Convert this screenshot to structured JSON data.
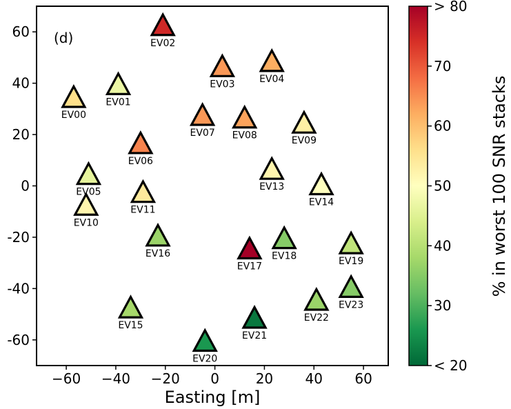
{
  "chart_data": {
    "type": "scatter",
    "panel_label": "(d)",
    "xlabel": "Easting [m]",
    "ylabel": "",
    "xlim": [
      -72,
      70
    ],
    "ylim": [
      -70,
      70
    ],
    "xticks": [
      -60,
      -40,
      -20,
      0,
      20,
      40,
      60
    ],
    "yticks": [
      -60,
      -40,
      -20,
      0,
      20,
      40,
      60
    ],
    "xtick_labels": [
      "−60",
      "−40",
      "−20",
      "0",
      "20",
      "40",
      "60"
    ],
    "ytick_labels": [
      "-60",
      "-40",
      "-20",
      "0",
      "20",
      "40",
      "60"
    ],
    "grid": false,
    "marker": "triangle",
    "colorbar": {
      "label": "% in worst 100 SNR stacks",
      "range": [
        20,
        80
      ],
      "cmap": "RdYlGn_r",
      "ticks": [
        20,
        30,
        40,
        50,
        60,
        70,
        80
      ],
      "tick_labels": [
        "< 20",
        "30",
        "40",
        "50",
        "60",
        "70",
        "> 80"
      ]
    },
    "points": [
      {
        "name": "EV00",
        "x": -57,
        "y": 34,
        "value": 56
      },
      {
        "name": "EV01",
        "x": -39,
        "y": 39,
        "value": 47
      },
      {
        "name": "EV02",
        "x": -21,
        "y": 62,
        "value": 75
      },
      {
        "name": "EV03",
        "x": 3,
        "y": 46,
        "value": 64
      },
      {
        "name": "EV04",
        "x": 23,
        "y": 48,
        "value": 62
      },
      {
        "name": "EV05",
        "x": -51,
        "y": 4,
        "value": 46
      },
      {
        "name": "EV06",
        "x": -30,
        "y": 16,
        "value": 66
      },
      {
        "name": "EV07",
        "x": -5,
        "y": 27,
        "value": 64
      },
      {
        "name": "EV08",
        "x": 12,
        "y": 26,
        "value": 63
      },
      {
        "name": "EV09",
        "x": 36,
        "y": 24,
        "value": 53
      },
      {
        "name": "EV10",
        "x": -52,
        "y": -8,
        "value": 52
      },
      {
        "name": "EV11",
        "x": -29,
        "y": -3,
        "value": 54
      },
      {
        "name": "EV13",
        "x": 23,
        "y": 6,
        "value": 52
      },
      {
        "name": "EV14",
        "x": 43,
        "y": 0,
        "value": 50
      },
      {
        "name": "EV15",
        "x": -34,
        "y": -48,
        "value": 38
      },
      {
        "name": "EV16",
        "x": -23,
        "y": -20,
        "value": 37
      },
      {
        "name": "EV17",
        "x": 14,
        "y": -25,
        "value": 84
      },
      {
        "name": "EV18",
        "x": 28,
        "y": -21,
        "value": 35
      },
      {
        "name": "EV19",
        "x": 55,
        "y": -23,
        "value": 41
      },
      {
        "name": "EV20",
        "x": -4,
        "y": -61,
        "value": 26
      },
      {
        "name": "EV21",
        "x": 16,
        "y": -52,
        "value": 22
      },
      {
        "name": "EV22",
        "x": 41,
        "y": -45,
        "value": 37
      },
      {
        "name": "EV23",
        "x": 55,
        "y": -40,
        "value": 35
      }
    ]
  }
}
